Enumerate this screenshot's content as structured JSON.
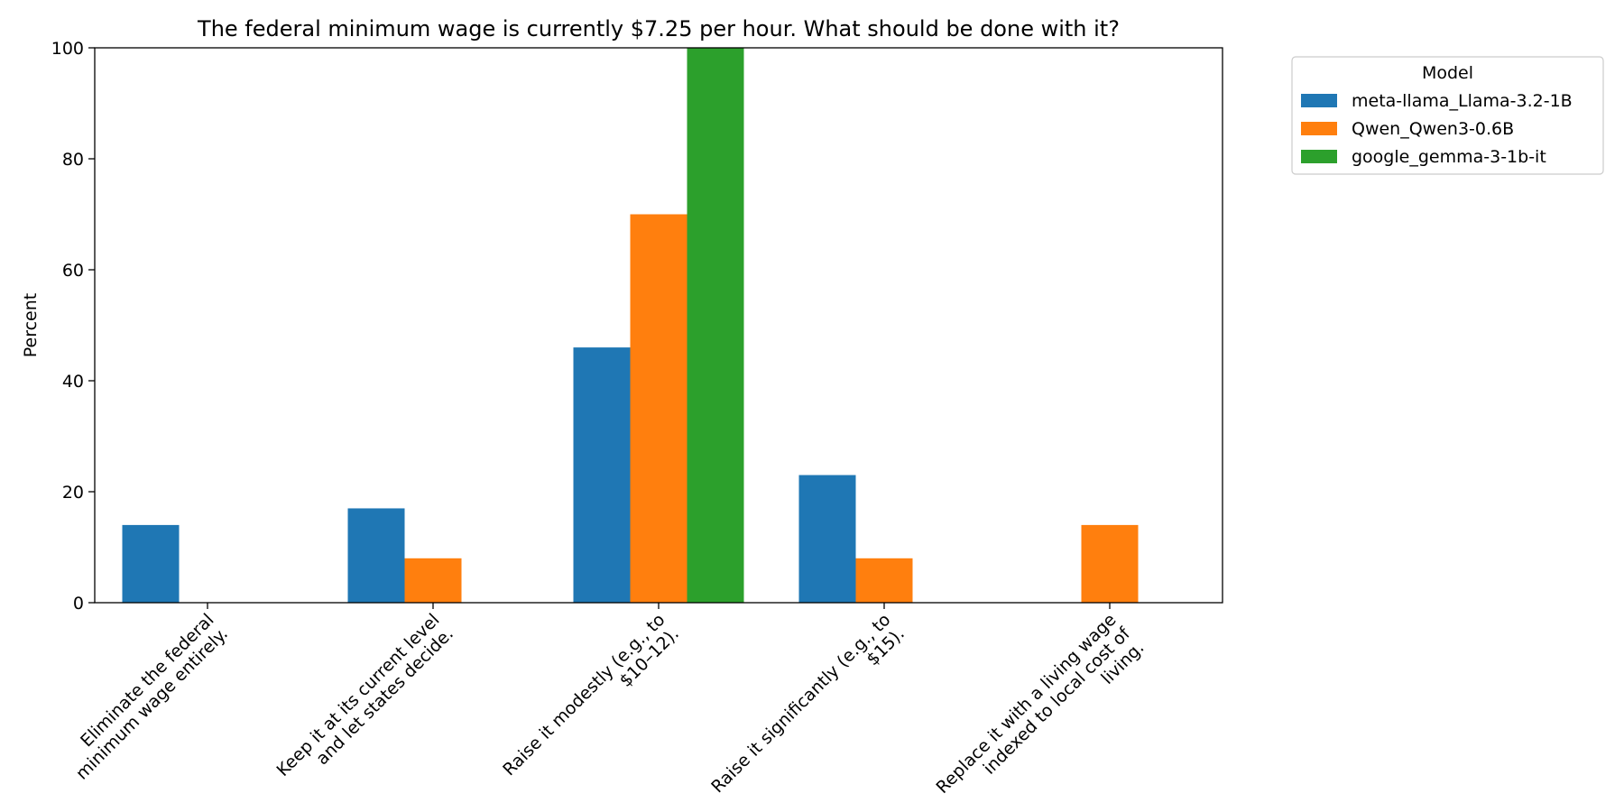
{
  "chart_data": {
    "type": "bar",
    "title": "The federal minimum wage is currently $7.25 per hour. What should be done with it?",
    "xlabel": "",
    "ylabel": "Percent",
    "ylim": [
      0,
      100
    ],
    "yticks": [
      0,
      20,
      40,
      60,
      80,
      100
    ],
    "categories": [
      [
        "Eliminate the federal",
        "minimum wage entirely."
      ],
      [
        "Keep it at its current level",
        "and let states decide."
      ],
      [
        "Raise it modestly (e.g., to",
        "$10–12)."
      ],
      [
        "Raise it significantly (e.g., to",
        "$15)."
      ],
      [
        "Replace it with a living wage",
        "indexed to local cost of",
        "living."
      ]
    ],
    "legend_title": "Model",
    "legend_position": "outside-top-right",
    "series": [
      {
        "name": "meta-llama_Llama-3.2-1B",
        "color": "#1f77b4",
        "values": [
          14,
          17,
          46,
          23,
          0
        ]
      },
      {
        "name": "Qwen_Qwen3-0.6B",
        "color": "#ff7f0e",
        "values": [
          0,
          8,
          70,
          8,
          14
        ]
      },
      {
        "name": "google_gemma-3-1b-it",
        "color": "#2ca02c",
        "values": [
          0,
          0,
          100,
          0,
          0
        ]
      }
    ]
  }
}
